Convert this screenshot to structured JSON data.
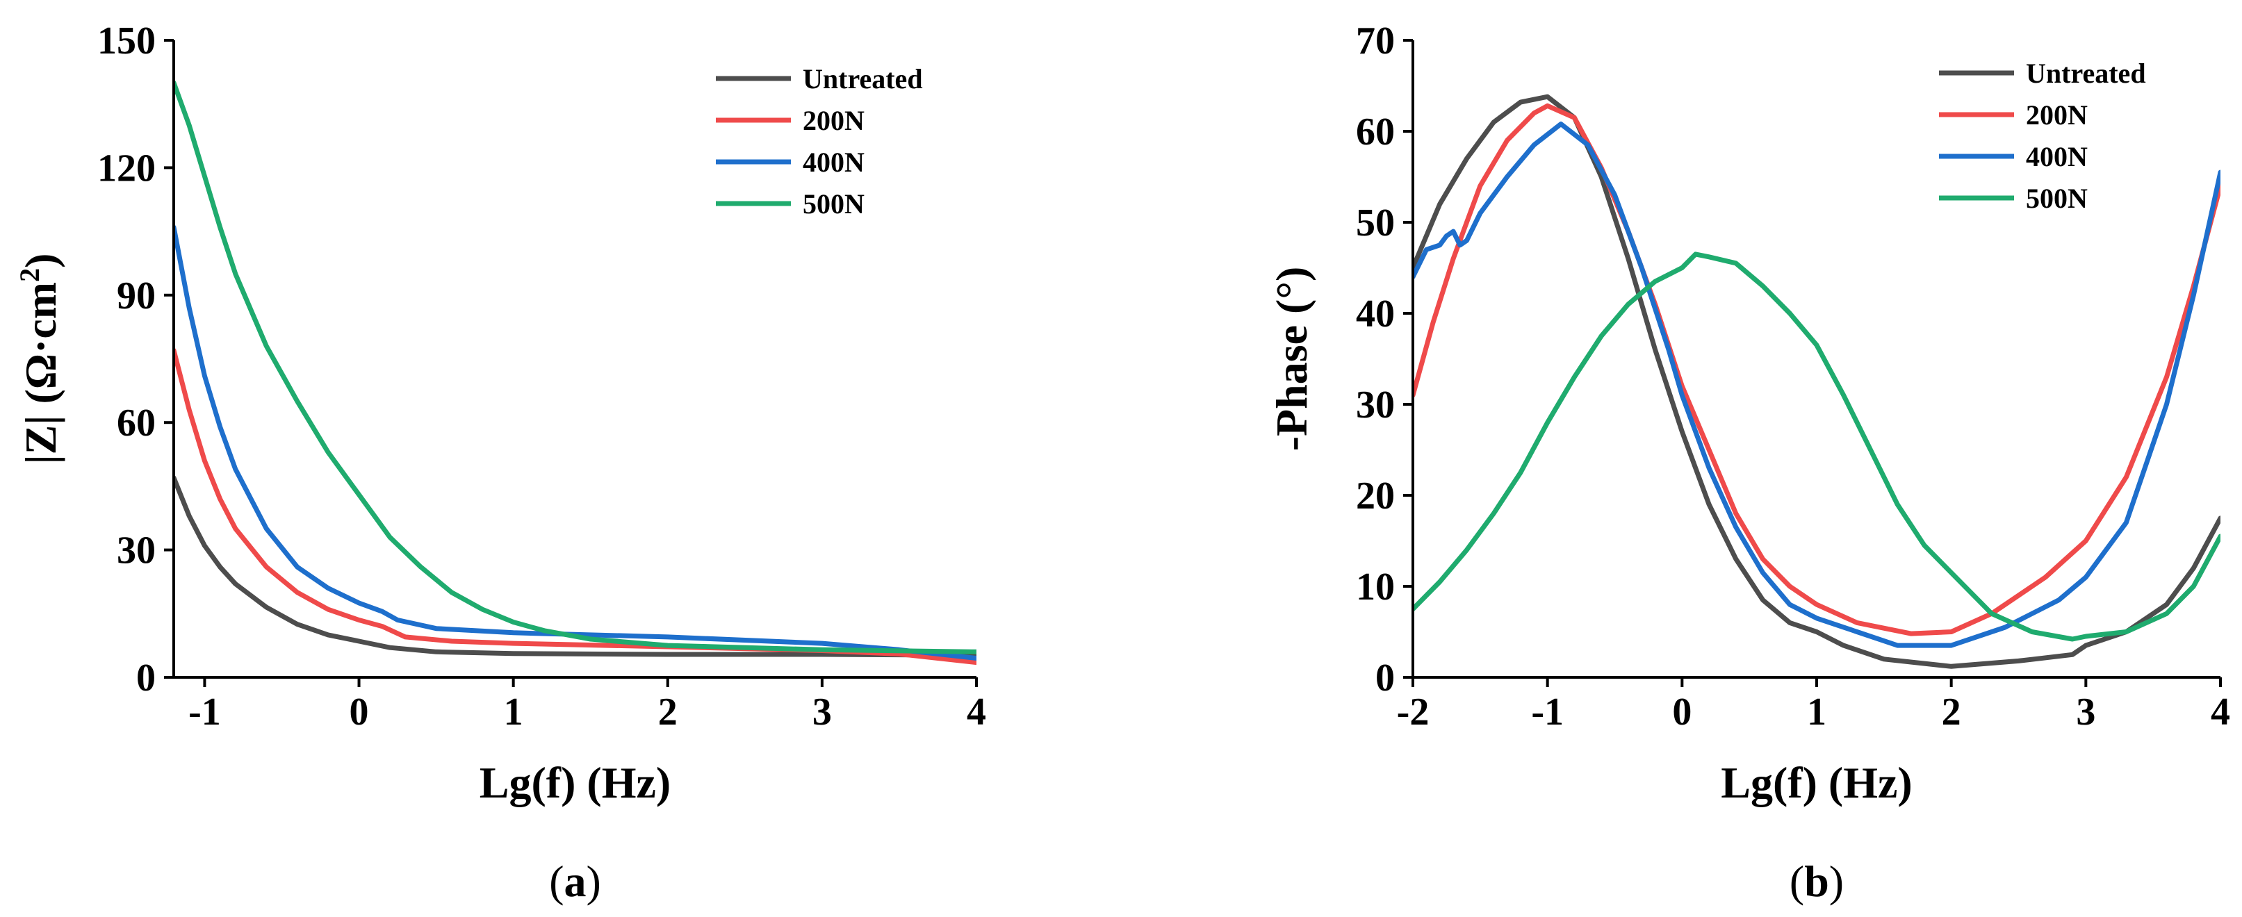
{
  "chart_data": [
    {
      "type": "line",
      "panel_label_open": "(",
      "panel_label": "a",
      "panel_label_close": ")",
      "xlabel": "Lg(f) (Hz)",
      "ylabel": "|Z| (Ω·cm",
      "ylabel_sup": "2",
      "ylabel_end": ")",
      "xlim": [
        -1.2,
        4
      ],
      "ylim": [
        0,
        150
      ],
      "xticks": [
        -1,
        0,
        1,
        2,
        3,
        4
      ],
      "yticks": [
        0,
        30,
        60,
        90,
        120,
        150
      ],
      "xtick_labels": [
        "-1",
        "0",
        "1",
        "2",
        "3",
        "4"
      ],
      "ytick_labels": [
        "0",
        "30",
        "60",
        "90",
        "120",
        "150"
      ],
      "legend_position": "top-right",
      "series": [
        {
          "name": "Untreated",
          "color": "#4d4d4d",
          "x": [
            -1.2,
            -1.1,
            -1.0,
            -0.9,
            -0.8,
            -0.6,
            -0.4,
            -0.2,
            0.0,
            0.2,
            0.5,
            1.0,
            2.0,
            3.0,
            4.0
          ],
          "y": [
            47,
            38,
            31,
            26,
            22,
            16.5,
            12.5,
            10,
            8.5,
            7,
            6,
            5.6,
            5.4,
            5.4,
            5.2
          ]
        },
        {
          "name": "200N",
          "color": "#ef4a4a",
          "x": [
            -1.2,
            -1.1,
            -1.0,
            -0.9,
            -0.8,
            -0.6,
            -0.4,
            -0.2,
            0.0,
            0.15,
            0.3,
            0.6,
            1.0,
            2.0,
            3.0,
            3.5,
            4.0
          ],
          "y": [
            77,
            63,
            51,
            42,
            35,
            26,
            20,
            16,
            13.5,
            12,
            9.5,
            8.5,
            8,
            7.2,
            6.3,
            5.5,
            3.5
          ]
        },
        {
          "name": "400N",
          "color": "#1e6fcc",
          "x": [
            -1.2,
            -1.1,
            -1.0,
            -0.9,
            -0.8,
            -0.6,
            -0.4,
            -0.2,
            0.0,
            0.15,
            0.25,
            0.5,
            1.0,
            2.0,
            3.0,
            3.5,
            4.0
          ],
          "y": [
            106,
            87,
            71,
            59,
            49,
            35,
            26,
            21,
            17.5,
            15.5,
            13.5,
            11.5,
            10.5,
            9.5,
            8,
            6.5,
            4.5
          ]
        },
        {
          "name": "500N",
          "color": "#1fab6e",
          "x": [
            -1.2,
            -1.1,
            -1.0,
            -0.9,
            -0.8,
            -0.6,
            -0.4,
            -0.2,
            0.0,
            0.1,
            0.2,
            0.4,
            0.6,
            0.8,
            1.0,
            1.2,
            1.5,
            2.0,
            3.0,
            4.0
          ],
          "y": [
            140,
            130,
            118,
            106,
            95,
            78,
            65,
            53,
            43,
            38,
            33,
            26,
            20,
            16,
            13,
            11,
            9,
            7.5,
            6.5,
            6
          ]
        }
      ]
    },
    {
      "type": "line",
      "panel_label_open": "(",
      "panel_label": "b",
      "panel_label_close": ")",
      "xlabel": "Lg(f) (Hz)",
      "ylabel": "-Phase (°)",
      "xlim": [
        -2,
        4
      ],
      "ylim": [
        0,
        70
      ],
      "xticks": [
        -2,
        -1,
        0,
        1,
        2,
        3,
        4
      ],
      "yticks": [
        0,
        10,
        20,
        30,
        40,
        50,
        60,
        70
      ],
      "xtick_labels": [
        "-2",
        "-1",
        "0",
        "1",
        "2",
        "3",
        "4"
      ],
      "ytick_labels": [
        "0",
        "10",
        "20",
        "30",
        "40",
        "50",
        "60",
        "70"
      ],
      "legend_position": "top-right",
      "series": [
        {
          "name": "Untreated",
          "color": "#4d4d4d",
          "x": [
            -2.0,
            -1.8,
            -1.6,
            -1.4,
            -1.2,
            -1.0,
            -0.8,
            -0.6,
            -0.4,
            -0.2,
            0.0,
            0.2,
            0.4,
            0.6,
            0.8,
            1.0,
            1.2,
            1.5,
            2.0,
            2.5,
            2.9,
            3.0,
            3.3,
            3.6,
            3.8,
            4.0
          ],
          "y": [
            45,
            52,
            57,
            61,
            63.2,
            63.8,
            61.5,
            55,
            46,
            36,
            27,
            19,
            13,
            8.5,
            6,
            5,
            3.5,
            2,
            1.2,
            1.8,
            2.5,
            3.5,
            5,
            8,
            12,
            17.5
          ]
        },
        {
          "name": "200N",
          "color": "#ef4a4a",
          "x": [
            -2.0,
            -1.85,
            -1.7,
            -1.5,
            -1.3,
            -1.1,
            -1.0,
            -0.8,
            -0.6,
            -0.4,
            -0.2,
            0.0,
            0.2,
            0.4,
            0.6,
            0.8,
            1.0,
            1.3,
            1.7,
            2.0,
            2.3,
            2.7,
            3.0,
            3.3,
            3.6,
            3.8,
            4.0
          ],
          "y": [
            31,
            39,
            46,
            54,
            59,
            62,
            62.8,
            61.5,
            56,
            49,
            41,
            32,
            25,
            18,
            13,
            10,
            8,
            6,
            4.8,
            5,
            7,
            11,
            15,
            22,
            33,
            43,
            54
          ]
        },
        {
          "name": "400N",
          "color": "#1e6fcc",
          "x": [
            -2.0,
            -1.9,
            -1.8,
            -1.75,
            -1.7,
            -1.65,
            -1.6,
            -1.5,
            -1.3,
            -1.1,
            -0.9,
            -0.7,
            -0.5,
            -0.3,
            -0.1,
            0.0,
            0.2,
            0.4,
            0.6,
            0.8,
            1.0,
            1.3,
            1.6,
            2.0,
            2.4,
            2.8,
            3.0,
            3.3,
            3.6,
            3.8,
            4.0
          ],
          "y": [
            44,
            47,
            47.5,
            48.5,
            49,
            47.5,
            48,
            51,
            55,
            58.5,
            60.8,
            58.5,
            53,
            45,
            36,
            31,
            23,
            16.5,
            11.5,
            8,
            6.5,
            5,
            3.5,
            3.5,
            5.5,
            8.5,
            11,
            17,
            30,
            42,
            55.5
          ]
        },
        {
          "name": "500N",
          "color": "#1fab6e",
          "x": [
            -2.0,
            -1.8,
            -1.6,
            -1.4,
            -1.2,
            -1.0,
            -0.8,
            -0.6,
            -0.4,
            -0.2,
            0.0,
            0.1,
            0.2,
            0.4,
            0.6,
            0.8,
            1.0,
            1.2,
            1.4,
            1.6,
            1.8,
            2.0,
            2.3,
            2.6,
            2.9,
            3.0,
            3.3,
            3.6,
            3.8,
            4.0
          ],
          "y": [
            7.5,
            10.5,
            14,
            18,
            22.5,
            28,
            33,
            37.5,
            41,
            43.5,
            45,
            46.5,
            46.2,
            45.5,
            43,
            40,
            36.5,
            31,
            25,
            19,
            14.5,
            11.5,
            7,
            5,
            4.2,
            4.5,
            5,
            7,
            10,
            15.5
          ]
        }
      ]
    }
  ]
}
